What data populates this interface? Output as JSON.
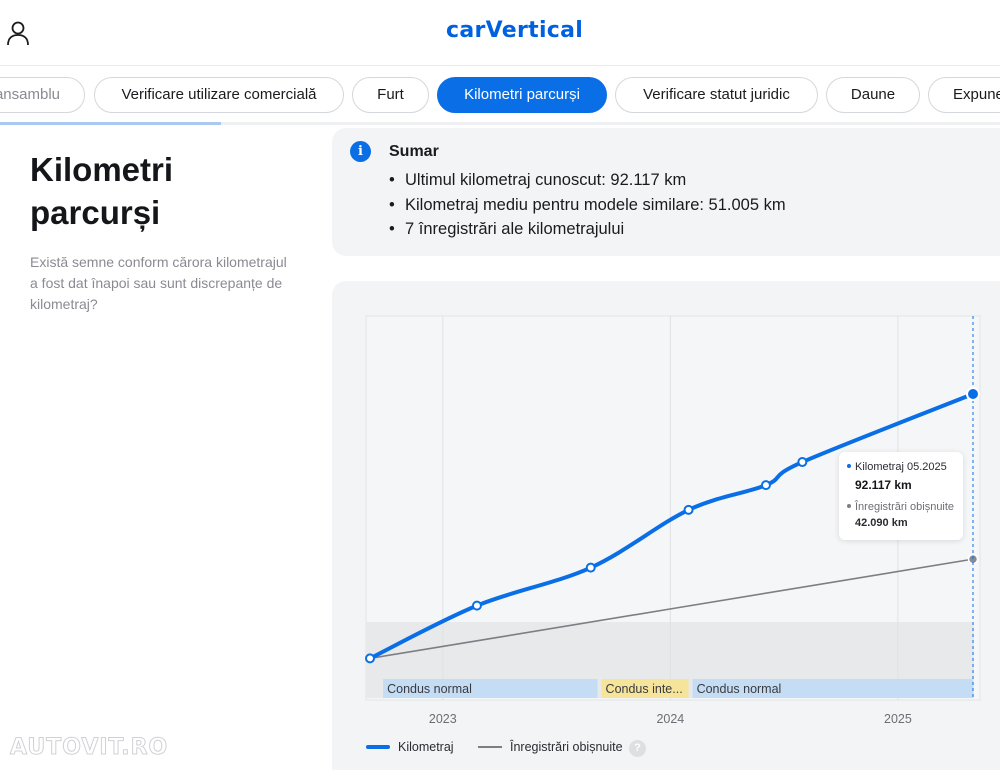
{
  "header": {
    "logo_text": "carVertical",
    "brand_color": "#0060df"
  },
  "tabs": [
    {
      "label": "ansamblu",
      "active": false
    },
    {
      "label": "Verificare utilizare comercială",
      "active": false
    },
    {
      "label": "Furt",
      "active": false
    },
    {
      "label": "Kilometri parcurși",
      "active": true
    },
    {
      "label": "Verificare statut juridic",
      "active": false
    },
    {
      "label": "Daune",
      "active": false
    },
    {
      "label": "Expune",
      "active": false
    }
  ],
  "section": {
    "title": "Kilometri parcurși",
    "description": "Există semne conform cărora kilometrajul a fost dat înapoi sau sunt discrepanțe de kilometraj?"
  },
  "summary": {
    "title": "Sumar",
    "items": [
      "Ultimul kilometraj cunoscut: 92.117 km",
      "Kilometraj mediu pentru modele similare: 51.005 km",
      "7 înregistrări ale kilometrajului"
    ]
  },
  "chart_data": {
    "type": "line",
    "x_ticks": [
      "2023",
      "2024",
      "2025"
    ],
    "series": [
      {
        "name": "Kilometraj",
        "color": "#0a6fe6",
        "points": [
          {
            "date": "2022.68",
            "km": 12000
          },
          {
            "date": "2023.15",
            "km": 28000
          },
          {
            "date": "2023.65",
            "km": 39500
          },
          {
            "date": "2024.08",
            "km": 57000
          },
          {
            "date": "2024.42",
            "km": 64500
          },
          {
            "date": "2024.58",
            "km": 71500
          },
          {
            "date": "2025.33",
            "km": 92117
          }
        ]
      },
      {
        "name": "Înregistrări obișnuite",
        "color": "#7d7e84",
        "points": [
          {
            "date": "2022.68",
            "km": 12000
          },
          {
            "date": "2025.33",
            "km": 42090
          }
        ]
      }
    ],
    "bands": [
      {
        "label": "Condus normal",
        "from": "2022.72",
        "to": "2023.68",
        "color": "#c4dcf4"
      },
      {
        "label": "Condus inte...",
        "from": "2023.68",
        "to": "2024.08",
        "color": "#f6e49a"
      },
      {
        "label": "Condus normal",
        "from": "2024.08",
        "to": "2025.33",
        "color": "#c4dcf4"
      }
    ],
    "tooltip": {
      "title": "Kilometraj 05.2025",
      "value": "92.117 km",
      "secondary_label": "Înregistrări obișnuite",
      "secondary_value": "42.090 km"
    },
    "legend": [
      {
        "label": "Kilometraj",
        "color": "#0a6fe6"
      },
      {
        "label": "Înregistrări obișnuite",
        "color": "#7d7e84"
      }
    ]
  },
  "help_icon_text": "?",
  "watermark": "AUTOVIT.RO"
}
